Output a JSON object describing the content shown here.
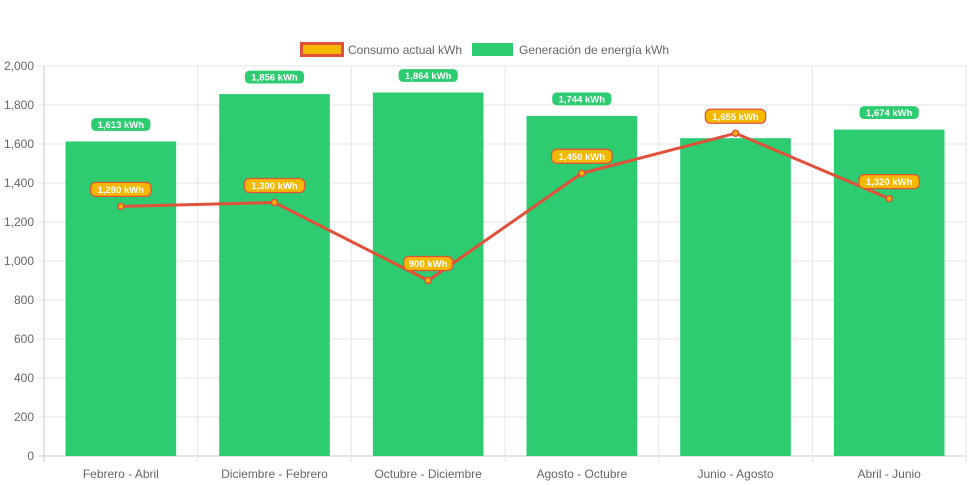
{
  "chart_data": {
    "type": "bar",
    "categories": [
      "Febrero - Abril",
      "Diciembre - Febrero",
      "Octubre - Diciembre",
      "Agosto - Octubre",
      "Junio - Agosto",
      "Abril - Junio"
    ],
    "series": [
      {
        "name": "Consumo actual kWh",
        "type": "line",
        "values": [
          1280,
          1300,
          900,
          1450,
          1655,
          1320
        ],
        "labels": [
          "1,280 kWh",
          "1,300 kWh",
          "900 kWh",
          "1,450 kWh",
          "1,655 kWh",
          "1,320 kWh"
        ],
        "color": "#e0513a",
        "label_color": "#f5b800"
      },
      {
        "name": "Generación de energía kWh",
        "type": "bar",
        "values": [
          1613,
          1856,
          1864,
          1744,
          1630,
          1674
        ],
        "labels": [
          "1,613 kWh",
          "1,856 kWh",
          "1,864 kWh",
          "1,744 kWh",
          "",
          "1,674 kWh"
        ],
        "color": "#2ecc71"
      }
    ],
    "yticks": [
      "0",
      "200",
      "400",
      "600",
      "800",
      "1,000",
      "1,200",
      "1,400",
      "1,600",
      "1,800",
      "2,000"
    ],
    "ylim": [
      0,
      2000
    ],
    "xlabel": "",
    "ylabel": "",
    "legend_position": "top",
    "grid": true
  }
}
